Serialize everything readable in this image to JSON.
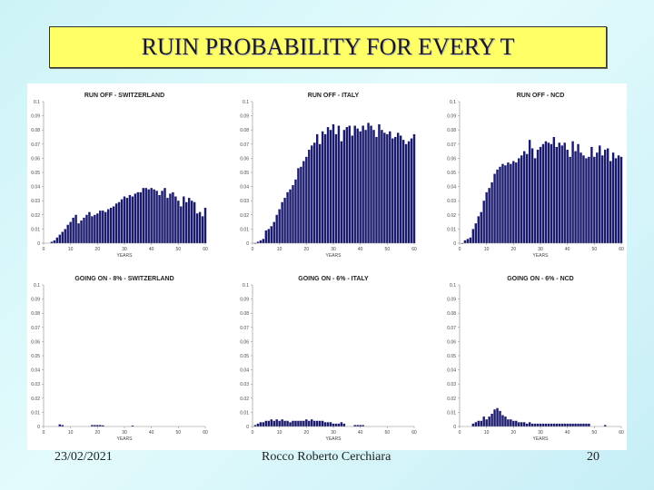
{
  "slide": {
    "title": "RUIN PROBABILITY FOR EVERY T",
    "date": "23/02/2021",
    "author": "Rocco Roberto Cerchiara",
    "page": "20"
  },
  "colors": {
    "bar": "#1a1a6e",
    "title_bg": "#ffff66"
  },
  "chart_data": [
    {
      "type": "bar",
      "title": "RUN OFF - SWITZERLAND",
      "xlabel": "YEARS",
      "ylabel": "",
      "xlim": [
        0,
        60
      ],
      "ylim": [
        0,
        0.1
      ],
      "xticks": [
        0,
        10,
        20,
        30,
        40,
        50,
        60
      ],
      "yticks": [
        0,
        0.01,
        0.02,
        0.03,
        0.04,
        0.05,
        0.06,
        0.07,
        0.08,
        0.09,
        0.1
      ],
      "x": [
        3,
        4,
        5,
        6,
        7,
        8,
        9,
        10,
        11,
        12,
        13,
        14,
        15,
        16,
        17,
        18,
        19,
        20,
        21,
        22,
        23,
        24,
        25,
        26,
        27,
        28,
        29,
        30,
        31,
        32,
        33,
        34,
        35,
        36,
        37,
        38,
        39,
        40,
        41,
        42,
        43,
        44,
        45,
        46,
        47,
        48,
        49,
        50,
        51,
        52,
        53,
        54,
        55,
        56,
        57,
        58,
        59,
        60
      ],
      "values": [
        0.001,
        0.002,
        0.004,
        0.006,
        0.008,
        0.01,
        0.013,
        0.015,
        0.018,
        0.02,
        0.014,
        0.016,
        0.018,
        0.02,
        0.022,
        0.019,
        0.02,
        0.021,
        0.023,
        0.023,
        0.022,
        0.024,
        0.025,
        0.026,
        0.028,
        0.029,
        0.031,
        0.033,
        0.032,
        0.034,
        0.033,
        0.035,
        0.036,
        0.036,
        0.039,
        0.039,
        0.038,
        0.039,
        0.038,
        0.037,
        0.034,
        0.037,
        0.039,
        0.032,
        0.035,
        0.036,
        0.033,
        0.03,
        0.026,
        0.033,
        0.029,
        0.032,
        0.03,
        0.029,
        0.021,
        0.022,
        0.019,
        0.025
      ]
    },
    {
      "type": "bar",
      "title": "RUN OFF - ITALY",
      "xlabel": "YEARS",
      "ylabel": "",
      "xlim": [
        0,
        60
      ],
      "ylim": [
        0,
        0.1
      ],
      "xticks": [
        0,
        10,
        20,
        30,
        40,
        50,
        60
      ],
      "yticks": [
        0,
        0.01,
        0.02,
        0.03,
        0.04,
        0.05,
        0.06,
        0.07,
        0.08,
        0.09,
        0.1
      ],
      "x": [
        1,
        2,
        3,
        4,
        5,
        6,
        7,
        8,
        9,
        10,
        11,
        12,
        13,
        14,
        15,
        16,
        17,
        18,
        19,
        20,
        21,
        22,
        23,
        24,
        25,
        26,
        27,
        28,
        29,
        30,
        31,
        32,
        33,
        34,
        35,
        36,
        37,
        38,
        39,
        40,
        41,
        42,
        43,
        44,
        45,
        46,
        47,
        48,
        49,
        50,
        51,
        52,
        53,
        54,
        55,
        56,
        57,
        58,
        59,
        60
      ],
      "values": [
        0.0,
        0.001,
        0.002,
        0.003,
        0.009,
        0.01,
        0.012,
        0.015,
        0.02,
        0.024,
        0.029,
        0.032,
        0.036,
        0.038,
        0.041,
        0.045,
        0.053,
        0.054,
        0.058,
        0.061,
        0.066,
        0.069,
        0.071,
        0.077,
        0.07,
        0.079,
        0.077,
        0.082,
        0.08,
        0.084,
        0.077,
        0.083,
        0.072,
        0.08,
        0.082,
        0.083,
        0.076,
        0.083,
        0.081,
        0.079,
        0.083,
        0.08,
        0.085,
        0.083,
        0.08,
        0.075,
        0.084,
        0.08,
        0.078,
        0.077,
        0.079,
        0.074,
        0.075,
        0.078,
        0.076,
        0.073,
        0.07,
        0.072,
        0.074,
        0.077
      ]
    },
    {
      "type": "bar",
      "title": "RUN OFF - NCD",
      "xlabel": "YEARS",
      "ylabel": "",
      "xlim": [
        0,
        60
      ],
      "ylim": [
        0,
        0.1
      ],
      "xticks": [
        0,
        10,
        20,
        30,
        40,
        50,
        60
      ],
      "yticks": [
        0,
        0.01,
        0.02,
        0.03,
        0.04,
        0.05,
        0.06,
        0.07,
        0.08,
        0.09,
        0.1
      ],
      "x": [
        1,
        2,
        3,
        4,
        5,
        6,
        7,
        8,
        9,
        10,
        11,
        12,
        13,
        14,
        15,
        16,
        17,
        18,
        19,
        20,
        21,
        22,
        23,
        24,
        25,
        26,
        27,
        28,
        29,
        30,
        31,
        32,
        33,
        34,
        35,
        36,
        37,
        38,
        39,
        40,
        41,
        42,
        43,
        44,
        45,
        46,
        47,
        48,
        49,
        50,
        51,
        52,
        53,
        54,
        55,
        56,
        57,
        58,
        59,
        60
      ],
      "values": [
        0.0,
        0.002,
        0.003,
        0.004,
        0.01,
        0.014,
        0.019,
        0.022,
        0.03,
        0.036,
        0.039,
        0.043,
        0.049,
        0.052,
        0.054,
        0.056,
        0.055,
        0.057,
        0.056,
        0.058,
        0.057,
        0.06,
        0.062,
        0.065,
        0.063,
        0.073,
        0.067,
        0.06,
        0.066,
        0.068,
        0.07,
        0.072,
        0.071,
        0.07,
        0.075,
        0.068,
        0.071,
        0.069,
        0.071,
        0.066,
        0.061,
        0.072,
        0.065,
        0.07,
        0.064,
        0.062,
        0.06,
        0.061,
        0.068,
        0.061,
        0.064,
        0.069,
        0.062,
        0.066,
        0.067,
        0.058,
        0.064,
        0.06,
        0.062,
        0.061
      ]
    },
    {
      "type": "bar",
      "title": "GOING ON - 8% - SWITZERLAND",
      "xlabel": "YEARS",
      "ylabel": "",
      "xlim": [
        0,
        60
      ],
      "ylim": [
        0,
        0.1
      ],
      "xticks": [
        0,
        10,
        20,
        30,
        40,
        50,
        60
      ],
      "yticks": [
        0,
        0.01,
        0.02,
        0.03,
        0.04,
        0.05,
        0.06,
        0.07,
        0.08,
        0.09,
        0.1
      ],
      "x": [
        6,
        7,
        18,
        19,
        20,
        21,
        22,
        33
      ],
      "values": [
        0.0015,
        0.001,
        0.001,
        0.001,
        0.001,
        0.001,
        0.0008,
        0.0006
      ]
    },
    {
      "type": "bar",
      "title": "GOING ON - 6% - ITALY",
      "xlabel": "YEARS",
      "ylabel": "",
      "xlim": [
        0,
        60
      ],
      "ylim": [
        0,
        0.1
      ],
      "xticks": [
        0,
        10,
        20,
        30,
        40,
        50,
        60
      ],
      "yticks": [
        0,
        0.01,
        0.02,
        0.03,
        0.04,
        0.05,
        0.06,
        0.07,
        0.08,
        0.09,
        0.1
      ],
      "x": [
        1,
        2,
        3,
        4,
        5,
        6,
        7,
        8,
        9,
        10,
        11,
        12,
        13,
        14,
        15,
        16,
        17,
        18,
        19,
        20,
        21,
        22,
        23,
        24,
        25,
        26,
        27,
        28,
        29,
        30,
        31,
        32,
        33,
        34,
        38,
        39,
        40,
        41
      ],
      "values": [
        0.001,
        0.002,
        0.003,
        0.003,
        0.004,
        0.004,
        0.005,
        0.004,
        0.005,
        0.004,
        0.005,
        0.004,
        0.004,
        0.003,
        0.004,
        0.004,
        0.004,
        0.004,
        0.004,
        0.005,
        0.004,
        0.005,
        0.004,
        0.004,
        0.004,
        0.004,
        0.003,
        0.003,
        0.003,
        0.002,
        0.002,
        0.002,
        0.003,
        0.002,
        0.001,
        0.001,
        0.001,
        0.001
      ]
    },
    {
      "type": "bar",
      "title": "GOING ON - 6% - NCD",
      "xlabel": "YEARS",
      "ylabel": "",
      "xlim": [
        0,
        60
      ],
      "ylim": [
        0,
        0.1
      ],
      "xticks": [
        0,
        10,
        20,
        30,
        40,
        50,
        60
      ],
      "yticks": [
        0,
        0.01,
        0.02,
        0.03,
        0.04,
        0.05,
        0.06,
        0.07,
        0.08,
        0.09,
        0.1
      ],
      "x": [
        5,
        6,
        7,
        8,
        9,
        10,
        11,
        12,
        13,
        14,
        15,
        16,
        17,
        18,
        19,
        20,
        21,
        22,
        23,
        24,
        25,
        26,
        27,
        28,
        29,
        30,
        31,
        32,
        33,
        34,
        35,
        36,
        37,
        38,
        39,
        40,
        41,
        42,
        43,
        44,
        45,
        46,
        47,
        48,
        54
      ],
      "values": [
        0.002,
        0.003,
        0.004,
        0.004,
        0.007,
        0.005,
        0.007,
        0.009,
        0.012,
        0.013,
        0.011,
        0.008,
        0.007,
        0.005,
        0.005,
        0.004,
        0.004,
        0.003,
        0.003,
        0.003,
        0.002,
        0.003,
        0.002,
        0.002,
        0.002,
        0.002,
        0.002,
        0.002,
        0.002,
        0.002,
        0.002,
        0.002,
        0.002,
        0.002,
        0.002,
        0.002,
        0.002,
        0.002,
        0.002,
        0.002,
        0.002,
        0.002,
        0.002,
        0.002,
        0.001
      ]
    }
  ]
}
